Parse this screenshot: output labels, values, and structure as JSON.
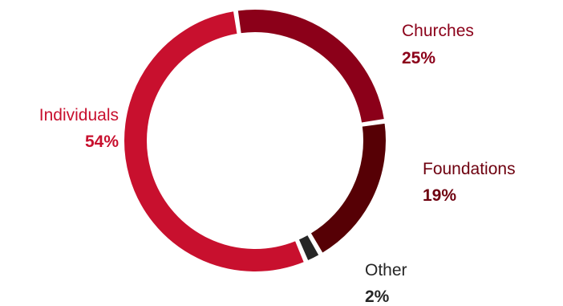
{
  "chart_data": {
    "type": "pie",
    "variant": "donut",
    "title": "",
    "slices": [
      {
        "label": "Churches",
        "value": 25,
        "value_label": "25%",
        "color": "#8b0019"
      },
      {
        "label": "Foundations",
        "value": 19,
        "value_label": "19%",
        "color": "#560005"
      },
      {
        "label": "Other",
        "value": 2,
        "value_label": "2%",
        "color": "#262626"
      },
      {
        "label": "Individuals",
        "value": 54,
        "value_label": "54%",
        "color": "#c8102e"
      }
    ],
    "label_colors": {
      "Churches": "#8b0019",
      "Foundations": "#6e000f",
      "Other": "#262626",
      "Individuals": "#c8102e"
    }
  }
}
